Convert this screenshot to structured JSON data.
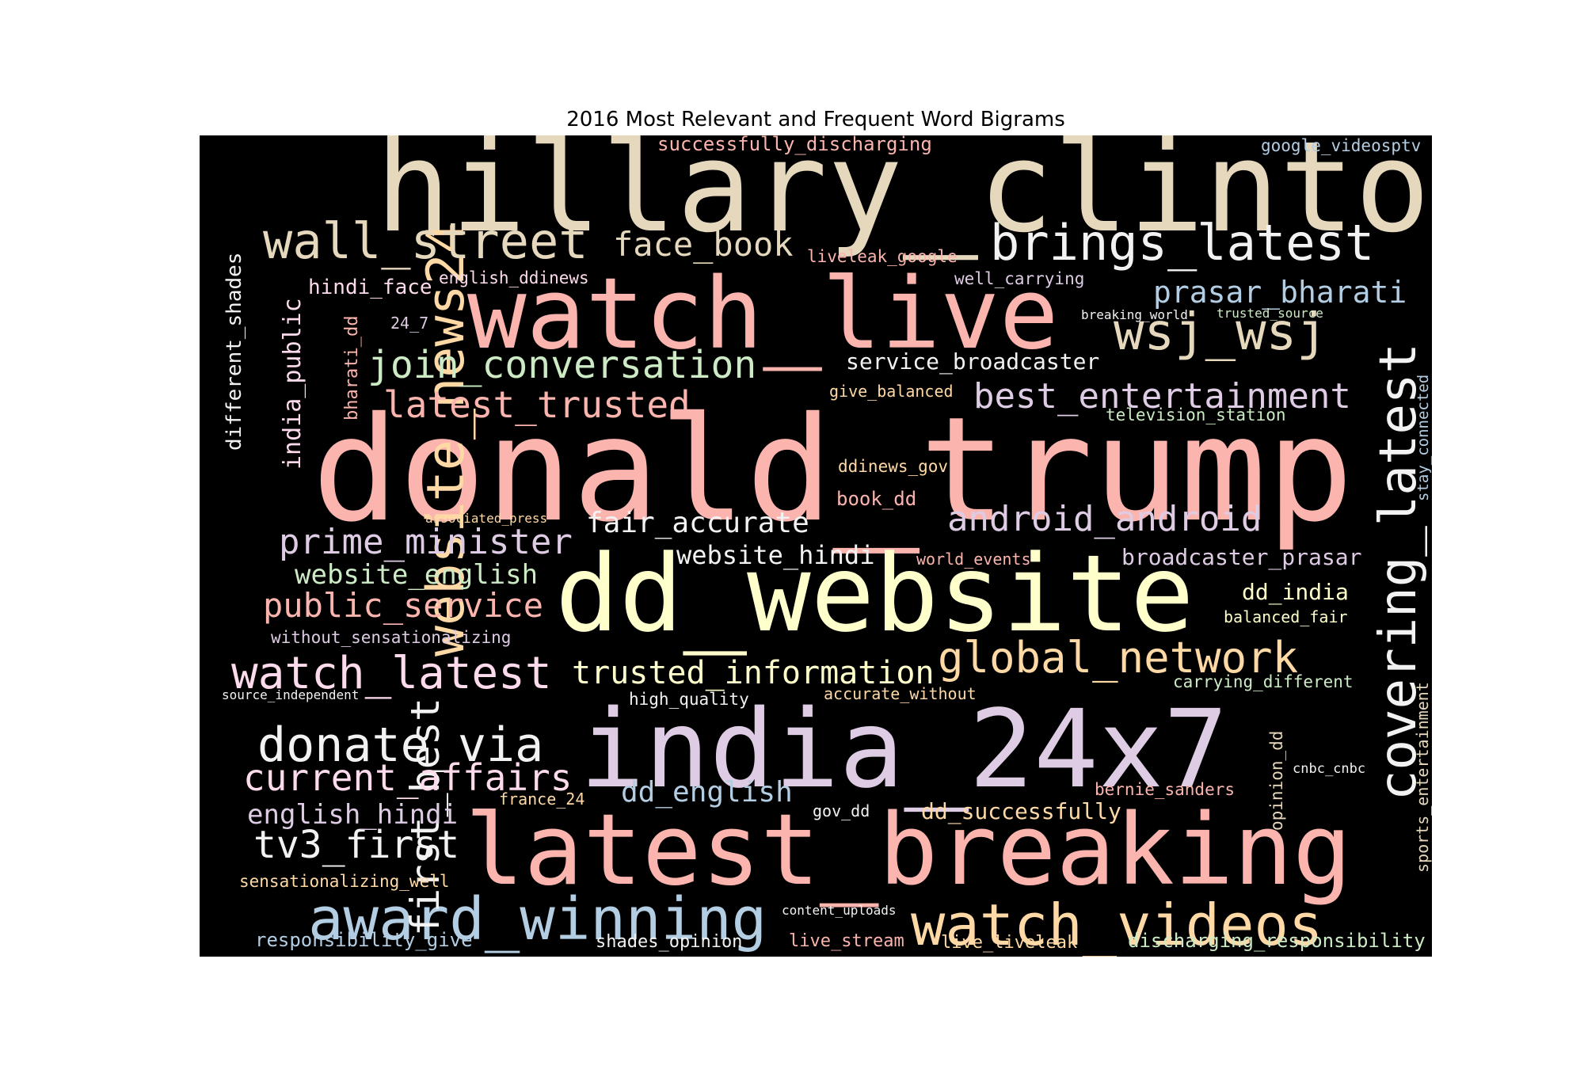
{
  "chart_data": {
    "type": "wordcloud",
    "title": "2016 Most Relevant and Frequent Word Bigrams",
    "background": "#000000",
    "palette": [
      "#fbb4ae",
      "#b3cde3",
      "#ccebc5",
      "#decbe4",
      "#fed9a6",
      "#ffffcc",
      "#e5d8bd",
      "#fddaec",
      "#f2f2f2"
    ],
    "words": [
      {
        "text": "hillary_clinton",
        "color": "#e5d8bd",
        "orientation": "horizontal"
      },
      {
        "text": "donald_trump",
        "color": "#fbb4ae",
        "orientation": "horizontal"
      },
      {
        "text": "watch_live",
        "color": "#fbb4ae",
        "orientation": "horizontal"
      },
      {
        "text": "dd_website",
        "color": "#ffffcc",
        "orientation": "horizontal"
      },
      {
        "text": "india_24x7",
        "color": "#decbe4",
        "orientation": "horizontal"
      },
      {
        "text": "latest_breaking",
        "color": "#fbb4ae",
        "orientation": "horizontal"
      },
      {
        "text": "website_news24",
        "color": "#fed9a6",
        "orientation": "vertical"
      },
      {
        "text": "covering_latest",
        "color": "#f2f2f2",
        "orientation": "vertical"
      },
      {
        "text": "wall_street",
        "color": "#e5d8bd",
        "orientation": "horizontal"
      },
      {
        "text": "brings_latest",
        "color": "#f2f2f2",
        "orientation": "horizontal"
      },
      {
        "text": "award_winning",
        "color": "#b3cde3",
        "orientation": "horizontal"
      },
      {
        "text": "watch_videos",
        "color": "#fed9a6",
        "orientation": "horizontal"
      },
      {
        "text": "wsj_wsj",
        "color": "#e5d8bd",
        "orientation": "horizontal"
      },
      {
        "text": "donate_via",
        "color": "#f2f2f2",
        "orientation": "horizontal"
      },
      {
        "text": "watch_latest",
        "color": "#fddaec",
        "orientation": "horizontal"
      },
      {
        "text": "global_network",
        "color": "#fed9a6",
        "orientation": "horizontal"
      },
      {
        "text": "join_conversation",
        "color": "#ccebc5",
        "orientation": "horizontal"
      },
      {
        "text": "face_book",
        "color": "#e5d8bd",
        "orientation": "horizontal"
      },
      {
        "text": "best_entertainment",
        "color": "#decbe4",
        "orientation": "horizontal"
      },
      {
        "text": "first_best",
        "color": "#f2f2f2",
        "orientation": "vertical"
      },
      {
        "text": "latest_trusted",
        "color": "#fbb4ae",
        "orientation": "horizontal"
      },
      {
        "text": "prime_minister",
        "color": "#decbe4",
        "orientation": "horizontal"
      },
      {
        "text": "current_affairs",
        "color": "#fddaec",
        "orientation": "horizontal"
      },
      {
        "text": "tv3_first",
        "color": "#f2f2f2",
        "orientation": "horizontal"
      },
      {
        "text": "public_service",
        "color": "#fbb4ae",
        "orientation": "horizontal"
      },
      {
        "text": "trusted_information",
        "color": "#ffffcc",
        "orientation": "horizontal"
      },
      {
        "text": "android_android",
        "color": "#decbe4",
        "orientation": "horizontal"
      },
      {
        "text": "prasar_bharati",
        "color": "#b3cde3",
        "orientation": "horizontal"
      },
      {
        "text": "fair_accurate",
        "color": "#f2f2f2",
        "orientation": "horizontal"
      },
      {
        "text": "dd_english",
        "color": "#b3cde3",
        "orientation": "horizontal"
      },
      {
        "text": "india_public",
        "color": "#fddaec",
        "orientation": "vertical"
      },
      {
        "text": "different_shades",
        "color": "#f2f2f2",
        "orientation": "vertical"
      },
      {
        "text": "english_hindi",
        "color": "#decbe4",
        "orientation": "horizontal"
      },
      {
        "text": "website_english",
        "color": "#ccebc5",
        "orientation": "horizontal"
      },
      {
        "text": "website_hindi",
        "color": "#f2f2f2",
        "orientation": "horizontal"
      },
      {
        "text": "service_broadcaster",
        "color": "#f2f2f2",
        "orientation": "horizontal"
      },
      {
        "text": "broadcaster_prasar",
        "color": "#decbe4",
        "orientation": "horizontal"
      },
      {
        "text": "dd_successfully",
        "color": "#fed9a6",
        "orientation": "horizontal"
      },
      {
        "text": "successfully_discharging",
        "color": "#fbb4ae",
        "orientation": "horizontal"
      },
      {
        "text": "dd_india",
        "color": "#ffffcc",
        "orientation": "horizontal"
      },
      {
        "text": "hindi_face",
        "color": "#fddaec",
        "orientation": "horizontal"
      },
      {
        "text": "responsibility_give",
        "color": "#b3cde3",
        "orientation": "horizontal"
      },
      {
        "text": "discharging_responsibility",
        "color": "#ccebc5",
        "orientation": "horizontal"
      },
      {
        "text": "bharati_dd",
        "color": "#fbb4ae",
        "orientation": "vertical"
      },
      {
        "text": "sports_entertainment",
        "color": "#e5d8bd",
        "orientation": "vertical"
      },
      {
        "text": "live_liveleak",
        "color": "#fed9a6",
        "orientation": "horizontal"
      },
      {
        "text": "shades_opinion",
        "color": "#f2f2f2",
        "orientation": "horizontal"
      },
      {
        "text": "live_stream",
        "color": "#fbb4ae",
        "orientation": "horizontal"
      },
      {
        "text": "google_videosptv",
        "color": "#b3cde3",
        "orientation": "horizontal"
      },
      {
        "text": "opinion_dd",
        "color": "#e5d8bd",
        "orientation": "vertical"
      },
      {
        "text": "without_sensationalizing",
        "color": "#decbe4",
        "orientation": "horizontal"
      },
      {
        "text": "sensationalizing_well",
        "color": "#fed9a6",
        "orientation": "horizontal"
      },
      {
        "text": "carrying_different",
        "color": "#ccebc5",
        "orientation": "horizontal"
      },
      {
        "text": "liveleak_google",
        "color": "#fbb4ae",
        "orientation": "horizontal"
      },
      {
        "text": "well_carrying",
        "color": "#decbe4",
        "orientation": "horizontal"
      },
      {
        "text": "television_station",
        "color": "#ccebc5",
        "orientation": "horizontal"
      },
      {
        "text": "bernie_sanders",
        "color": "#fbb4ae",
        "orientation": "horizontal"
      },
      {
        "text": "english_ddinews",
        "color": "#fddaec",
        "orientation": "horizontal"
      },
      {
        "text": "stay_connected",
        "color": "#b3cde3",
        "orientation": "vertical"
      },
      {
        "text": "ddinews_gov",
        "color": "#fed9a6",
        "orientation": "horizontal"
      },
      {
        "text": "book_dd",
        "color": "#fbb4ae",
        "orientation": "horizontal"
      },
      {
        "text": "give_balanced",
        "color": "#fed9a6",
        "orientation": "horizontal"
      },
      {
        "text": "accurate_without",
        "color": "#fed9a6",
        "orientation": "horizontal"
      },
      {
        "text": "high_quality",
        "color": "#f2f2f2",
        "orientation": "horizontal"
      },
      {
        "text": "balanced_fair",
        "color": "#ffffcc",
        "orientation": "horizontal"
      },
      {
        "text": "world_events",
        "color": "#fbb4ae",
        "orientation": "horizontal"
      },
      {
        "text": "gov_dd",
        "color": "#f2f2f2",
        "orientation": "horizontal"
      },
      {
        "text": "france_24",
        "color": "#fed9a6",
        "orientation": "horizontal"
      },
      {
        "text": "24_7",
        "color": "#decbe4",
        "orientation": "horizontal"
      },
      {
        "text": "source_independent",
        "color": "#f2f2f2",
        "orientation": "horizontal"
      },
      {
        "text": "cnbc_cnbc",
        "color": "#f2f2f2",
        "orientation": "horizontal"
      },
      {
        "text": "breaking_world",
        "color": "#f2f2f2",
        "orientation": "horizontal"
      },
      {
        "text": "trusted_source",
        "color": "#ccebc5",
        "orientation": "horizontal"
      },
      {
        "text": "associated_press",
        "color": "#fed9a6",
        "orientation": "horizontal"
      },
      {
        "text": "content_uploads",
        "color": "#f2f2f2",
        "orientation": "horizontal"
      }
    ]
  }
}
